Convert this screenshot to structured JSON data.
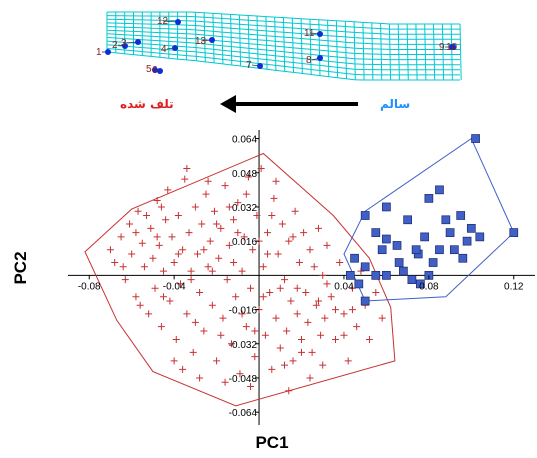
{
  "deformation_grid": {
    "landmarks": [
      {
        "label": "1"
      },
      {
        "label": "2"
      },
      {
        "label": "3"
      },
      {
        "label": "4"
      },
      {
        "label": "5"
      },
      {
        "label": "6"
      },
      {
        "label": "7"
      },
      {
        "label": "8"
      },
      {
        "label": "9"
      },
      {
        "label": "10"
      },
      {
        "label": "11"
      },
      {
        "label": "12"
      },
      {
        "label": "13"
      }
    ],
    "grid_color": "#00c8d2",
    "landmark_color": "#0a2fd8",
    "label_color": "#8b1a1a"
  },
  "arrow": {
    "from_label": "سالم",
    "to_label": "تلف شده",
    "from_color": "#1e90ff",
    "to_color": "#e02020"
  },
  "chart_data": {
    "type": "scatter",
    "title": "",
    "xlabel": "PC1",
    "ylabel": "PC2",
    "xlim": [
      -0.09,
      0.13
    ],
    "ylim": [
      -0.07,
      0.068
    ],
    "x_ticks": [
      -0.08,
      -0.04,
      0.04,
      0.08,
      0.12
    ],
    "x_tick_labels": [
      "-0.08",
      "-0.04",
      "0.04",
      "0.08",
      "0.12"
    ],
    "y_ticks": [
      0.064,
      0.048,
      0.032,
      0.016,
      -0.016,
      -0.032,
      -0.048,
      -0.064
    ],
    "y_tick_labels": [
      "0.064",
      "0.048",
      "0.032",
      "0.016",
      "-0.016",
      "-0.032",
      "-0.048",
      "-0.064"
    ],
    "grid": false,
    "series": [
      {
        "marker": "plus",
        "color": "#c83232",
        "hull": [
          [
            -0.082,
            0.011
          ],
          [
            -0.06,
            0.031
          ],
          [
            0.002,
            0.057
          ],
          [
            0.035,
            0.028
          ],
          [
            0.052,
            0.008
          ],
          [
            0.062,
            -0.015
          ],
          [
            0.064,
            -0.04
          ],
          [
            -0.011,
            -0.061
          ],
          [
            -0.05,
            -0.045
          ],
          [
            -0.067,
            -0.021
          ]
        ],
        "points": [
          [
            -0.07,
            0.012
          ],
          [
            -0.068,
            0.006
          ],
          [
            -0.065,
            0.018
          ],
          [
            -0.063,
            -0.002
          ],
          [
            -0.061,
            0.024
          ],
          [
            -0.06,
            0.01
          ],
          [
            -0.058,
            -0.01
          ],
          [
            -0.057,
            0.03
          ],
          [
            -0.055,
            0.015
          ],
          [
            -0.054,
            0.004
          ],
          [
            -0.052,
            -0.018
          ],
          [
            -0.051,
            0.022
          ],
          [
            -0.05,
            0.008
          ],
          [
            -0.049,
            -0.006
          ],
          [
            -0.048,
            0.035
          ],
          [
            -0.047,
            0.014
          ],
          [
            -0.046,
            -0.024
          ],
          [
            -0.045,
            0.002
          ],
          [
            -0.044,
            0.026
          ],
          [
            -0.043,
            0.04
          ],
          [
            -0.042,
            -0.012
          ],
          [
            -0.041,
            0.018
          ],
          [
            -0.04,
            0.006
          ],
          [
            -0.039,
            -0.03
          ],
          [
            -0.038,
            0.028
          ],
          [
            -0.037,
            -0.004
          ],
          [
            -0.036,
            0.012
          ],
          [
            -0.035,
            0.045
          ],
          [
            -0.034,
            -0.018
          ],
          [
            -0.033,
            0.02
          ],
          [
            -0.032,
            0.002
          ],
          [
            -0.031,
            -0.036
          ],
          [
            -0.03,
            0.032
          ],
          [
            -0.029,
            0.01
          ],
          [
            -0.028,
            -0.008
          ],
          [
            -0.027,
            0.024
          ],
          [
            -0.026,
            -0.026
          ],
          [
            -0.025,
            0.038
          ],
          [
            -0.024,
            0.004
          ],
          [
            -0.023,
            0.016
          ],
          [
            -0.022,
            -0.014
          ],
          [
            -0.021,
            0.03
          ],
          [
            -0.02,
            -0.04
          ],
          [
            -0.019,
            0.008
          ],
          [
            -0.018,
            0.022
          ],
          [
            -0.017,
            -0.02
          ],
          [
            -0.016,
            0.042
          ],
          [
            -0.015,
            -0.002
          ],
          [
            -0.014,
            0.014
          ],
          [
            -0.013,
            -0.032
          ],
          [
            -0.012,
            0.026
          ],
          [
            -0.011,
            -0.01
          ],
          [
            -0.01,
            0.034
          ],
          [
            -0.009,
            -0.046
          ],
          [
            -0.008,
            0.002
          ],
          [
            -0.007,
            0.018
          ],
          [
            -0.006,
            -0.024
          ],
          [
            -0.005,
            0.046
          ],
          [
            -0.004,
            -0.006
          ],
          [
            -0.003,
            0.012
          ],
          [
            -0.002,
            -0.038
          ],
          [
            -0.001,
            0.028
          ],
          [
            0.0,
            -0.016
          ],
          [
            0.001,
            0.05
          ],
          [
            0.002,
            0.004
          ],
          [
            0.003,
            -0.028
          ],
          [
            0.004,
            0.02
          ],
          [
            0.005,
            -0.008
          ],
          [
            0.006,
            -0.044
          ],
          [
            0.007,
            0.036
          ],
          [
            0.008,
            -0.02
          ],
          [
            0.009,
            0.01
          ],
          [
            0.01,
            -0.034
          ],
          [
            0.011,
            0.024
          ],
          [
            0.012,
            -0.002
          ],
          [
            0.013,
            -0.026
          ],
          [
            0.014,
            0.016
          ],
          [
            0.015,
            -0.012
          ],
          [
            0.016,
            -0.04
          ],
          [
            0.017,
            0.03
          ],
          [
            0.018,
            -0.018
          ],
          [
            0.019,
            0.006
          ],
          [
            0.02,
            -0.03
          ],
          [
            0.021,
            0.02
          ],
          [
            0.022,
            -0.008
          ],
          [
            0.023,
            -0.022
          ],
          [
            0.024,
            0.012
          ],
          [
            0.025,
            -0.036
          ],
          [
            0.026,
            0.004
          ],
          [
            0.027,
            -0.014
          ],
          [
            0.028,
            0.022
          ],
          [
            0.029,
            -0.028
          ],
          [
            0.03,
            0.0
          ],
          [
            0.031,
            -0.02
          ],
          [
            0.032,
            0.014
          ],
          [
            0.034,
            -0.01
          ],
          [
            0.036,
            -0.03
          ],
          [
            0.038,
            0.006
          ],
          [
            0.04,
            -0.018
          ],
          [
            0.042,
            -0.04
          ],
          [
            0.044,
            -0.006
          ],
          [
            0.046,
            -0.024
          ],
          [
            0.048,
            0.002
          ],
          [
            0.05,
            -0.014
          ],
          [
            0.052,
            -0.03
          ],
          [
            0.055,
            -0.008
          ],
          [
            0.058,
            -0.02
          ],
          [
            -0.053,
            0.028
          ],
          [
            -0.045,
            -0.01
          ],
          [
            -0.038,
            0.01
          ],
          [
            -0.03,
            -0.022
          ],
          [
            -0.024,
            0.044
          ],
          [
            -0.018,
            -0.028
          ],
          [
            -0.012,
            0.006
          ],
          [
            -0.006,
            0.038
          ],
          [
            0.0,
            0.016
          ],
          [
            0.006,
            0.028
          ],
          [
            0.012,
            -0.042
          ],
          [
            0.018,
            -0.006
          ],
          [
            0.024,
            -0.048
          ],
          [
            0.03,
            -0.042
          ],
          [
            0.036,
            -0.016
          ],
          [
            -0.04,
            -0.04
          ],
          [
            -0.034,
            0.05
          ],
          [
            -0.028,
            -0.048
          ],
          [
            -0.022,
            0.002
          ],
          [
            -0.016,
            -0.05
          ],
          [
            -0.01,
            0.02
          ],
          [
            -0.004,
            -0.052
          ],
          [
            0.002,
            -0.01
          ],
          [
            0.008,
            0.044
          ],
          [
            0.014,
            -0.054
          ],
          [
            -0.058,
            0.02
          ],
          [
            -0.046,
            0.032
          ],
          [
            -0.036,
            -0.044
          ],
          [
            -0.026,
            0.012
          ],
          [
            -0.014,
            0.032
          ],
          [
            -0.002,
            -0.026
          ],
          [
            0.01,
            -0.006
          ],
          [
            0.02,
            -0.036
          ],
          [
            0.032,
            -0.004
          ],
          [
            0.04,
            -0.028
          ],
          [
            -0.064,
            0.004
          ],
          [
            -0.056,
            -0.014
          ],
          [
            -0.048,
            0.018
          ],
          [
            -0.032,
            -0.002
          ],
          [
            -0.02,
            0.024
          ],
          [
            -0.008,
            -0.018
          ],
          [
            0.004,
            0.01
          ],
          [
            0.016,
            0.018
          ],
          [
            0.028,
            -0.012
          ],
          [
            0.044,
            -0.016
          ]
        ]
      },
      {
        "marker": "square",
        "color": "#4060c8",
        "hull": [
          [
            0.04,
            0.01
          ],
          [
            0.05,
            0.03
          ],
          [
            0.1,
            0.064
          ],
          [
            0.12,
            0.02
          ],
          [
            0.088,
            -0.01
          ],
          [
            0.05,
            -0.012
          ]
        ],
        "points": [
          [
            0.05,
            0.028
          ],
          [
            0.06,
            0.032
          ],
          [
            0.055,
            0.02
          ],
          [
            0.058,
            0.012
          ],
          [
            0.045,
            0.008
          ],
          [
            0.05,
            0.004
          ],
          [
            0.047,
            -0.004
          ],
          [
            0.043,
            0.0
          ],
          [
            0.055,
            0.0
          ],
          [
            0.05,
            -0.012
          ],
          [
            0.06,
            0.0
          ],
          [
            0.065,
            0.014
          ],
          [
            0.07,
            0.026
          ],
          [
            0.075,
            0.01
          ],
          [
            0.068,
            0.002
          ],
          [
            0.072,
            -0.002
          ],
          [
            0.08,
            0.036
          ],
          [
            0.085,
            0.04
          ],
          [
            0.088,
            0.026
          ],
          [
            0.09,
            0.02
          ],
          [
            0.078,
            0.018
          ],
          [
            0.082,
            0.006
          ],
          [
            0.076,
            -0.004
          ],
          [
            0.085,
            0.012
          ],
          [
            0.095,
            0.028
          ],
          [
            0.1,
            0.022
          ],
          [
            0.098,
            0.016
          ],
          [
            0.104,
            0.018
          ],
          [
            0.12,
            0.02
          ],
          [
            0.102,
            0.064
          ],
          [
            0.06,
            0.017
          ],
          [
            0.066,
            0.006
          ],
          [
            0.074,
            0.012
          ],
          [
            0.08,
            0.0
          ],
          [
            0.092,
            0.012
          ],
          [
            0.096,
            0.008
          ]
        ]
      }
    ]
  }
}
